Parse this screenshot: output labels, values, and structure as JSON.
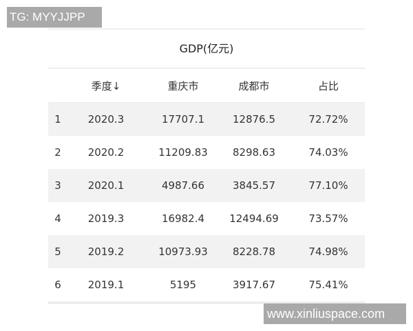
{
  "watermarks": {
    "top": "TG: MYYJJPP",
    "bottom": "www.xinliuspace.com"
  },
  "table": {
    "title": "GDP(亿元)",
    "headers": [
      "",
      "季度↓",
      "重庆市",
      "成都市",
      "占比"
    ],
    "rows": [
      [
        "1",
        "2020.3",
        "17707.1",
        "12876.5",
        "72.72%"
      ],
      [
        "2",
        "2020.2",
        "11209.83",
        "8298.63",
        "74.03%"
      ],
      [
        "3",
        "2020.1",
        "4987.66",
        "3845.57",
        "77.10%"
      ],
      [
        "4",
        "2019.3",
        "16982.4",
        "12494.69",
        "73.57%"
      ],
      [
        "5",
        "2019.2",
        "10973.93",
        "8228.78",
        "74.98%"
      ],
      [
        "6",
        "2019.1",
        "5195",
        "3917.67",
        "75.41%"
      ]
    ]
  }
}
